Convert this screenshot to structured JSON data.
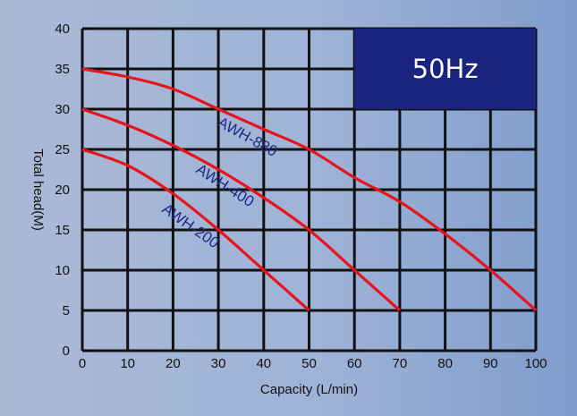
{
  "chart_data": {
    "type": "line",
    "xlabel": "Capacity (L/min)",
    "ylabel": "Total head(M)",
    "xlim": [
      0,
      100
    ],
    "ylim": [
      0,
      40
    ],
    "x_ticks": [
      0,
      10,
      20,
      30,
      40,
      50,
      60,
      70,
      80,
      90,
      100
    ],
    "y_ticks": [
      0,
      5,
      10,
      15,
      20,
      25,
      30,
      35,
      40
    ],
    "grid": true,
    "frequency_label": "50Hz",
    "series": [
      {
        "name": "AWH-880",
        "x": [
          0,
          10,
          20,
          30,
          40,
          50,
          60,
          70,
          80,
          90,
          100
        ],
        "y": [
          35,
          34,
          32.5,
          30,
          27.5,
          25,
          21.5,
          18.5,
          14.5,
          10,
          5
        ]
      },
      {
        "name": "AWH-400",
        "x": [
          0,
          10,
          20,
          30,
          40,
          50,
          60,
          70
        ],
        "y": [
          30,
          28,
          25.5,
          22.5,
          19,
          15,
          10,
          5
        ]
      },
      {
        "name": "AWH-200",
        "x": [
          0,
          10,
          20,
          30,
          40,
          50
        ],
        "y": [
          25,
          23,
          19.5,
          15,
          10,
          5
        ]
      }
    ],
    "colors": {
      "curve": "#e8141c",
      "grid": "#111111",
      "badge": "#1a237e",
      "curve_label": "#1d2a86"
    }
  }
}
